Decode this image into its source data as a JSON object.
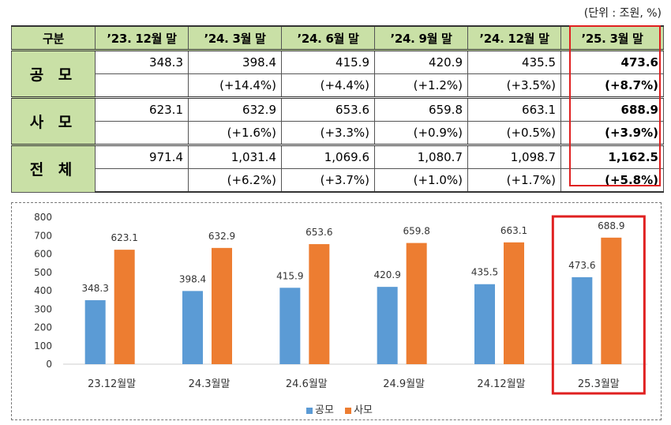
{
  "unit_label": "(단위 : 조원, %)",
  "table": {
    "header": [
      "구분",
      "’23. 12월 말",
      "’24. 3월 말",
      "’24. 6월 말",
      "’24. 9월 말",
      "’24. 12월 말",
      "’25. 3월 말"
    ],
    "rows": [
      {
        "label": "공 모",
        "values": [
          "348.3",
          "398.4",
          "415.9",
          "420.9",
          "435.5",
          "473.6"
        ],
        "changes": [
          "",
          "(+14.4%)",
          "(+4.4%)",
          "(+1.2%)",
          "(+3.5%)",
          "(+8.7%)"
        ]
      },
      {
        "label": "사 모",
        "values": [
          "623.1",
          "632.9",
          "653.6",
          "659.8",
          "663.1",
          "688.9"
        ],
        "changes": [
          "",
          "(+1.6%)",
          "(+3.3%)",
          "(+0.9%)",
          "(+0.5%)",
          "(+3.9%)"
        ]
      },
      {
        "label": "전 체",
        "values": [
          "971.4",
          "1,031.4",
          "1,069.6",
          "1,080.7",
          "1,098.7",
          "1,162.5"
        ],
        "changes": [
          "",
          "(+6.2%)",
          "(+3.7%)",
          "(+1.0%)",
          "(+1.7%)",
          "(+5.8%)"
        ]
      }
    ]
  },
  "colors": {
    "header_bg": "#c9e0a6",
    "highlight": "#e02020",
    "series_public": "#5b9bd5",
    "series_private": "#ed7d31"
  },
  "chart_data": {
    "type": "bar",
    "categories": [
      "23.12월말",
      "24.3월말",
      "24.6월말",
      "24.9월말",
      "24.12월말",
      "25.3월말"
    ],
    "series": [
      {
        "name": "공모",
        "values": [
          348.3,
          398.4,
          415.9,
          420.9,
          435.5,
          473.6
        ]
      },
      {
        "name": "사모",
        "values": [
          623.1,
          632.9,
          653.6,
          659.8,
          663.1,
          688.9
        ]
      }
    ],
    "ylim": [
      0,
      800
    ],
    "yticks": [
      0,
      100,
      200,
      300,
      400,
      500,
      600,
      700,
      800
    ],
    "grid": false,
    "legend": "bottom",
    "highlight_category": "25.3월말"
  }
}
